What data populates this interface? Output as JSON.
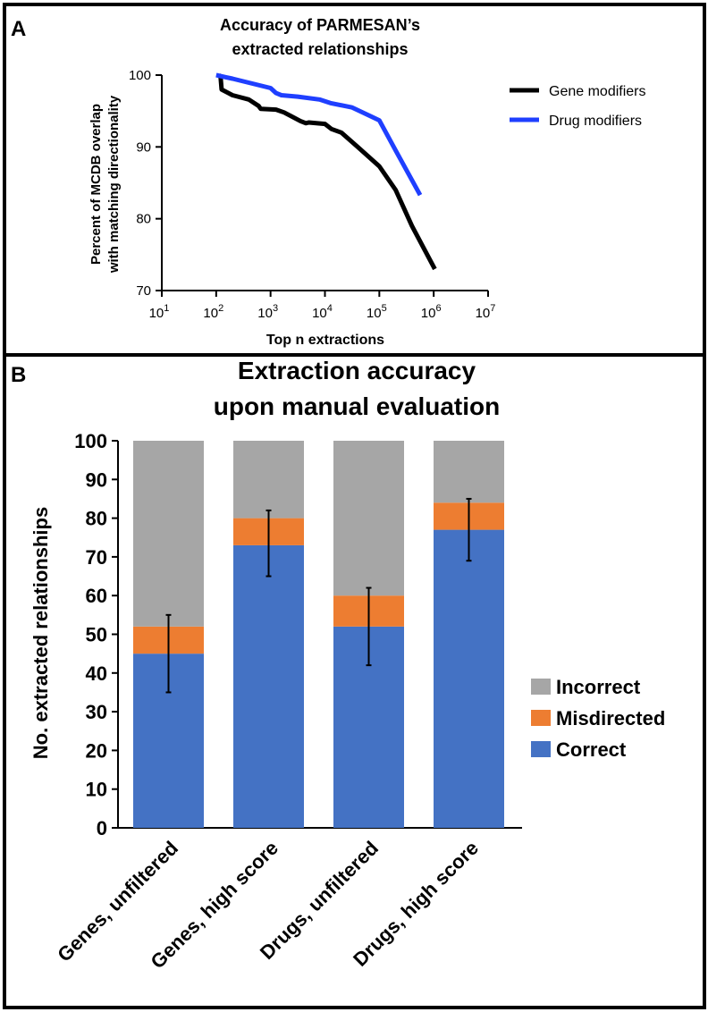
{
  "colors": {
    "frame": "#000000",
    "gene": "#000000",
    "drug": "#1f3fff",
    "incorrect": "#a6a6a6",
    "misdirected": "#ed7d31",
    "correct": "#4472c4",
    "error_bar": "#000000"
  },
  "chart_data": [
    {
      "panel_label": "A",
      "type": "line",
      "title": "Accuracy of PARMESAN’s extracted relationships",
      "title_lines": [
        "Accuracy of PARMESAN’s",
        "extracted relationships"
      ],
      "xlabel": "Top n extractions",
      "ylabel": "Percent of MCDB overlap with matching directionality",
      "ylabel_lines": [
        "Percent of MCDB overlap",
        "with matching directionality"
      ],
      "xscale": "log10",
      "xlim_exp": [
        1,
        7
      ],
      "xticks": [
        {
          "base": "10",
          "exp": "1"
        },
        {
          "base": "10",
          "exp": "2"
        },
        {
          "base": "10",
          "exp": "3"
        },
        {
          "base": "10",
          "exp": "4"
        },
        {
          "base": "10",
          "exp": "5"
        },
        {
          "base": "10",
          "exp": "6"
        },
        {
          "base": "10",
          "exp": "7"
        }
      ],
      "ylim": [
        70,
        100
      ],
      "yticks": [
        "70",
        "80",
        "90",
        "100"
      ],
      "legend_position": "top-right",
      "series": [
        {
          "name": "Gene modifiers",
          "color": "#000000",
          "x_log10": [
            2.05,
            2.08,
            2.1,
            2.3,
            2.6,
            2.78,
            2.82,
            3.1,
            3.25,
            3.3,
            3.55,
            3.65,
            3.7,
            4.0,
            4.12,
            4.3,
            4.6,
            5.0,
            5.3,
            5.6,
            6.02
          ],
          "y": [
            100,
            99.8,
            98.0,
            97.2,
            96.6,
            95.7,
            95.3,
            95.2,
            94.8,
            94.6,
            93.6,
            93.3,
            93.4,
            93.2,
            92.5,
            92.0,
            90.0,
            87.3,
            84.0,
            79.0,
            73.0
          ]
        },
        {
          "name": "Drug modifiers",
          "color": "#1f3fff",
          "x_log10": [
            2.0,
            2.3,
            3.0,
            3.1,
            3.2,
            3.5,
            3.9,
            4.1,
            4.5,
            5.0,
            5.3,
            5.75
          ],
          "y": [
            100,
            99.5,
            98.2,
            97.5,
            97.2,
            97.0,
            96.6,
            96.1,
            95.5,
            93.7,
            89.5,
            83.3
          ]
        }
      ]
    },
    {
      "panel_label": "B",
      "type": "bar",
      "stacked": true,
      "title": "Extraction accuracy upon manual evaluation",
      "title_lines": [
        "Extraction accuracy",
        "upon manual evaluation"
      ],
      "xlabel": "",
      "ylabel": "No. extracted relationships",
      "ylim": [
        0,
        100
      ],
      "yticks": [
        "0",
        "10",
        "20",
        "30",
        "40",
        "50",
        "60",
        "70",
        "80",
        "90",
        "100"
      ],
      "categories": [
        "Genes, unfiltered",
        "Genes, high score",
        "Drugs, unfiltered",
        "Drugs, high score"
      ],
      "series": [
        {
          "name": "Correct",
          "color": "#4472c4",
          "values": [
            45,
            73,
            52,
            77
          ]
        },
        {
          "name": "Misdirected",
          "color": "#ed7d31",
          "values": [
            7,
            7,
            8,
            7
          ]
        },
        {
          "name": "Incorrect",
          "color": "#a6a6a6",
          "values": [
            48,
            20,
            40,
            16
          ]
        }
      ],
      "error_bars": [
        {
          "center": 45,
          "low": 35,
          "high": 55
        },
        {
          "center": 73,
          "low": 65,
          "high": 82
        },
        {
          "center": 52,
          "low": 42,
          "high": 62
        },
        {
          "center": 77,
          "low": 69,
          "high": 85
        }
      ],
      "legend_position": "right",
      "legend_order": [
        "Incorrect",
        "Misdirected",
        "Correct"
      ]
    }
  ]
}
